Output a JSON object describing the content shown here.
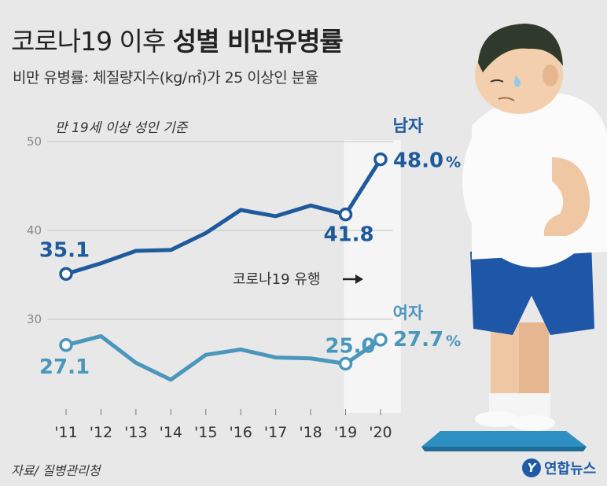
{
  "header": {
    "title_light": "코로나19 이후",
    "title_bold": "성별 비만유병률",
    "subtitle": "비만 유병률: 체질량지수(kg/㎡)가 25 이상인 분율"
  },
  "note": "만 19세 이상 성인 기준",
  "source": "자료/ 질병관리청",
  "logo": {
    "mark": "Y",
    "text": "연합뉴스"
  },
  "covid_annotation": "코로나19 유행",
  "icons": [
    "arrow-right-icon",
    "yonhap-logo-icon",
    "overweight-man-on-scale-illustration"
  ],
  "colors": {
    "male": "#1e5a9c",
    "female": "#4a96bd",
    "highlight": "#f5f5f5",
    "grid": "#c4c4c4"
  },
  "chart_data": {
    "type": "line",
    "categories": [
      "'11",
      "'12",
      "'13",
      "'14",
      "'15",
      "'16",
      "'17",
      "'18",
      "'19",
      "'20"
    ],
    "ylim": [
      20,
      50
    ],
    "yticks": [
      "30",
      "40",
      "50"
    ],
    "grid": true,
    "highlight_range": [
      "'19",
      "'20"
    ],
    "series": [
      {
        "name": "남자",
        "color": "#1e5a9c",
        "values": [
          35.1,
          36.3,
          37.7,
          37.8,
          39.7,
          42.3,
          41.6,
          42.8,
          41.8,
          48.0
        ],
        "labels": [
          {
            "index": 0,
            "text": "35.1"
          },
          {
            "index": 8,
            "text": "41.8"
          },
          {
            "index": 9,
            "text": "48.0",
            "suffix": "%"
          }
        ]
      },
      {
        "name": "여자",
        "color": "#4a96bd",
        "values": [
          27.1,
          28.1,
          25.1,
          23.2,
          26.0,
          26.6,
          25.7,
          25.6,
          25.0,
          27.7
        ],
        "labels": [
          {
            "index": 0,
            "text": "27.1"
          },
          {
            "index": 8,
            "text": "25.0"
          },
          {
            "index": 9,
            "text": "27.7",
            "suffix": "%"
          }
        ]
      }
    ]
  }
}
